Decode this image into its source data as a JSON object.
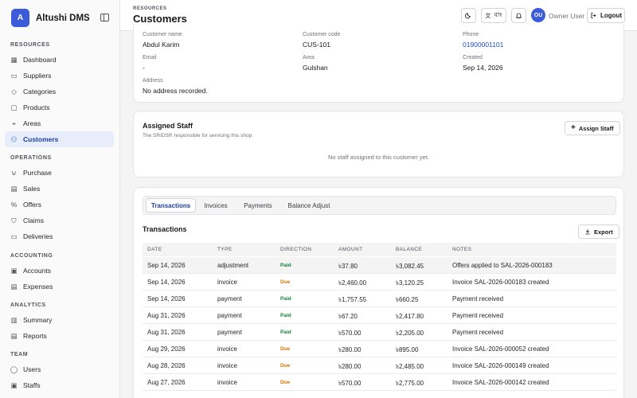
{
  "brand": {
    "logo_letter": "A",
    "name": "Altushi DMS"
  },
  "sidebar": {
    "sections": [
      {
        "title": "RESOURCES",
        "items": [
          {
            "label": "Dashboard",
            "icon": "dashboard-icon"
          },
          {
            "label": "Suppliers",
            "icon": "truck-icon"
          },
          {
            "label": "Categories",
            "icon": "tag-icon"
          },
          {
            "label": "Products",
            "icon": "box-icon"
          },
          {
            "label": "Areas",
            "icon": "map-pin-icon"
          },
          {
            "label": "Customers",
            "icon": "users-icon",
            "active": true
          }
        ]
      },
      {
        "title": "OPERATIONS",
        "items": [
          {
            "label": "Purchase",
            "icon": "cart-icon"
          },
          {
            "label": "Sales",
            "icon": "receipt-icon"
          },
          {
            "label": "Offers",
            "icon": "percent-icon"
          },
          {
            "label": "Claims",
            "icon": "shield-icon"
          },
          {
            "label": "Deliveries",
            "icon": "delivery-icon"
          }
        ]
      },
      {
        "title": "ACCOUNTING",
        "items": [
          {
            "label": "Accounts",
            "icon": "wallet-icon"
          },
          {
            "label": "Expenses",
            "icon": "expense-icon"
          }
        ]
      },
      {
        "title": "ANALYTICS",
        "items": [
          {
            "label": "Summary",
            "icon": "chart-icon"
          },
          {
            "label": "Reports",
            "icon": "report-icon"
          }
        ]
      },
      {
        "title": "TEAM",
        "items": [
          {
            "label": "Users",
            "icon": "user-icon"
          },
          {
            "label": "Staffs",
            "icon": "staff-icon"
          }
        ]
      }
    ]
  },
  "header": {
    "breadcrumb": "RESOURCES",
    "title": "Customers",
    "lang_label": "বাং",
    "avatar_initials": "OU",
    "user_name": "Owner User",
    "logout_label": "Logout"
  },
  "customer": {
    "name_label": "Customer name",
    "name": "Abdul Karim",
    "code_label": "Customer code",
    "code": "CUS-101",
    "phone_label": "Phone",
    "phone": "01900001101",
    "email_label": "Email",
    "email": "-",
    "area_label": "Area",
    "area": "Gulshan",
    "created_label": "Created",
    "created": "Sep 14, 2026",
    "address_label": "Address",
    "address": "No address recorded."
  },
  "staff": {
    "title": "Assigned Staff",
    "subtitle": "The SR/DSR responsible for servicing this shop.",
    "assign_label": "Assign Staff",
    "empty": "No staff assigned to this customer yet."
  },
  "tabs": [
    "Transactions",
    "Invoices",
    "Payments",
    "Balance Adjust"
  ],
  "transactions": {
    "title": "Transactions",
    "export_label": "Export",
    "columns": [
      "DATE",
      "TYPE",
      "DIRECTION",
      "AMOUNT",
      "BALANCE",
      "NOTES"
    ],
    "rows": [
      {
        "date": "Sep 14, 2026",
        "type": "adjustment",
        "direction": "Paid",
        "amount": "৳37.80",
        "balance": "৳3,082.45",
        "notes": "Offers applied to SAL-2026-000183"
      },
      {
        "date": "Sep 14, 2026",
        "type": "invoice",
        "direction": "Due",
        "amount": "৳2,460.00",
        "balance": "৳3,120.25",
        "notes": "Invoice SAL-2026-000183 created"
      },
      {
        "date": "Sep 14, 2026",
        "type": "payment",
        "direction": "Paid",
        "amount": "৳1,757.55",
        "balance": "৳660.25",
        "notes": "Payment received"
      },
      {
        "date": "Aug 31, 2026",
        "type": "payment",
        "direction": "Paid",
        "amount": "৳67.20",
        "balance": "৳2,417.80",
        "notes": "Payment received"
      },
      {
        "date": "Aug 31, 2026",
        "type": "payment",
        "direction": "Paid",
        "amount": "৳570.00",
        "balance": "৳2,205.00",
        "notes": "Payment received"
      },
      {
        "date": "Aug 29, 2026",
        "type": "invoice",
        "direction": "Due",
        "amount": "৳280.00",
        "balance": "৳895.00",
        "notes": "Invoice SAL-2026-000052 created"
      },
      {
        "date": "Aug 28, 2026",
        "type": "invoice",
        "direction": "Due",
        "amount": "৳280.00",
        "balance": "৳2,485.00",
        "notes": "Invoice SAL-2026-000149 created"
      },
      {
        "date": "Aug 27, 2026",
        "type": "invoice",
        "direction": "Due",
        "amount": "৳570.00",
        "balance": "৳2,775.00",
        "notes": "Invoice SAL-2026-000142 created"
      }
    ]
  },
  "colors": {
    "accent": "#3b5bdb",
    "paid": "#15803d",
    "due": "#d97706"
  }
}
